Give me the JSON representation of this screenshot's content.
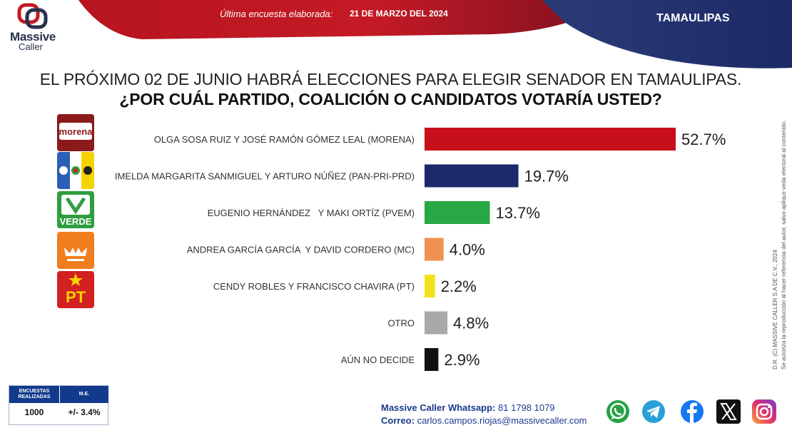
{
  "header": {
    "brand_line_1": "Massive",
    "brand_line_2": "Caller",
    "survey_label": "Última encuesta elaborada:",
    "survey_date": "21 DE MARZO DEL 2024",
    "state": "TAMAULIPAS"
  },
  "question": {
    "line_1": "EL PRÓXIMO 02 DE JUNIO HABRÁ ELECCIONES PARA ELEGIR SENADOR EN TAMAULIPAS.",
    "line_2": "¿POR CUÁL PARTIDO, COALICIÓN O CANDIDATOS VOTARÍA USTED?"
  },
  "party_logos": [
    {
      "name": "morena-logo",
      "text": "morena",
      "color": "#8b1a1a"
    },
    {
      "name": "pan-pri-prd-logo",
      "text": "",
      "color": "#1d4fa3"
    },
    {
      "name": "verde-logo",
      "text": "VERDE",
      "color": "#2e9e3e"
    },
    {
      "name": "movimiento-ciudadano-logo",
      "text": "",
      "color": "#f07d1e"
    },
    {
      "name": "pt-logo",
      "text": "PT",
      "color": "#d32020"
    }
  ],
  "chart_data": {
    "type": "bar",
    "orientation": "horizontal",
    "categories": [
      "OLGA SOSA RUIZ Y JOSÉ RAMÓN GÓMEZ LEAL (MORENA)",
      "IMELDA MARGARITA SANMIGUEL Y ARTURO NÚÑEZ (PAN-PRI-PRD)",
      "EUGENIO HERNÁNDEZ   Y MAKI ORTÍZ (PVEM)",
      "ANDREA GARCÍA GARCÍA  Y DAVID CORDERO (MC)",
      "CENDY ROBLES Y FRANCISCO CHAVIRA (PT)",
      "OTRO",
      "AÚN NO DECIDE"
    ],
    "values": [
      52.7,
      19.7,
      13.7,
      4.0,
      2.2,
      4.8,
      2.9
    ],
    "value_labels": [
      "52.7%",
      "19.7%",
      "13.7%",
      "4.0%",
      "2.2%",
      "4.8%",
      "2.9%"
    ],
    "colors": [
      "#c8101b",
      "#1a2a6b",
      "#27a844",
      "#f0914f",
      "#f2e21a",
      "#a9a9a9",
      "#111111"
    ],
    "unit": "%",
    "xlim": [
      0,
      52.7
    ],
    "grid": false,
    "legend": "none"
  },
  "stats": {
    "surveys_header": "ENCUESTAS REALIZADAS",
    "me_header": "M.E.",
    "surveys_value": "1000",
    "me_value": "+/- 3.4%"
  },
  "contact": {
    "whatsapp_label": "Massive Caller Whatsapp:",
    "whatsapp_value": "81 1798 1079",
    "email_label": "Correo:",
    "email_value": "carlos.campos.riojas@massivecaller.com"
  },
  "copyright": {
    "line_1": "D.R. (C) MASSIVE CALLER S.A DE C.V., 2024",
    "line_2": "Se autoriza la reproducción al hacer referencia del autor, salvo aplique veda electoral al contenido."
  },
  "social_icons": [
    "whatsapp-icon",
    "telegram-icon",
    "facebook-icon",
    "x-icon",
    "instagram-icon"
  ]
}
